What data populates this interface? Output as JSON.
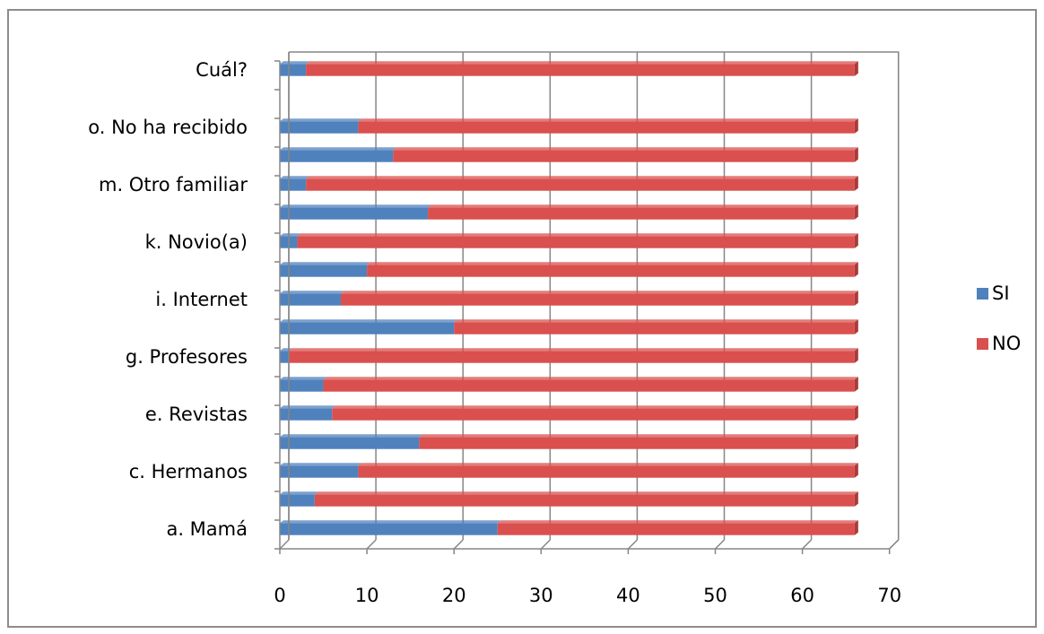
{
  "chart_data": {
    "type": "bar",
    "orientation": "horizontal",
    "stacked": true,
    "categories": [
      "a. Mamá",
      "",
      "c. Hermanos",
      "",
      "e. Revistas",
      "",
      "g. Profesores",
      "",
      "i. Internet",
      "",
      "k. Novio(a)",
      "",
      "m. Otro familiar",
      "",
      "o. No ha recibido",
      "",
      "Cuál?"
    ],
    "series": [
      {
        "name": "SI",
        "color": "#4f81bd",
        "values": [
          25,
          4,
          9,
          16,
          6,
          5,
          1,
          20,
          7,
          10,
          2,
          17,
          3,
          13,
          9,
          0,
          3
        ]
      },
      {
        "name": "NO",
        "color": "#d9504e",
        "values": [
          41,
          62,
          57,
          50,
          60,
          61,
          65,
          46,
          59,
          56,
          64,
          49,
          63,
          53,
          57,
          0,
          63
        ]
      }
    ],
    "xlim": [
      0,
      70
    ],
    "xticks": [
      "0",
      "10",
      "20",
      "30",
      "40",
      "50",
      "60",
      "70"
    ],
    "grid": true,
    "legend_position": "right"
  }
}
